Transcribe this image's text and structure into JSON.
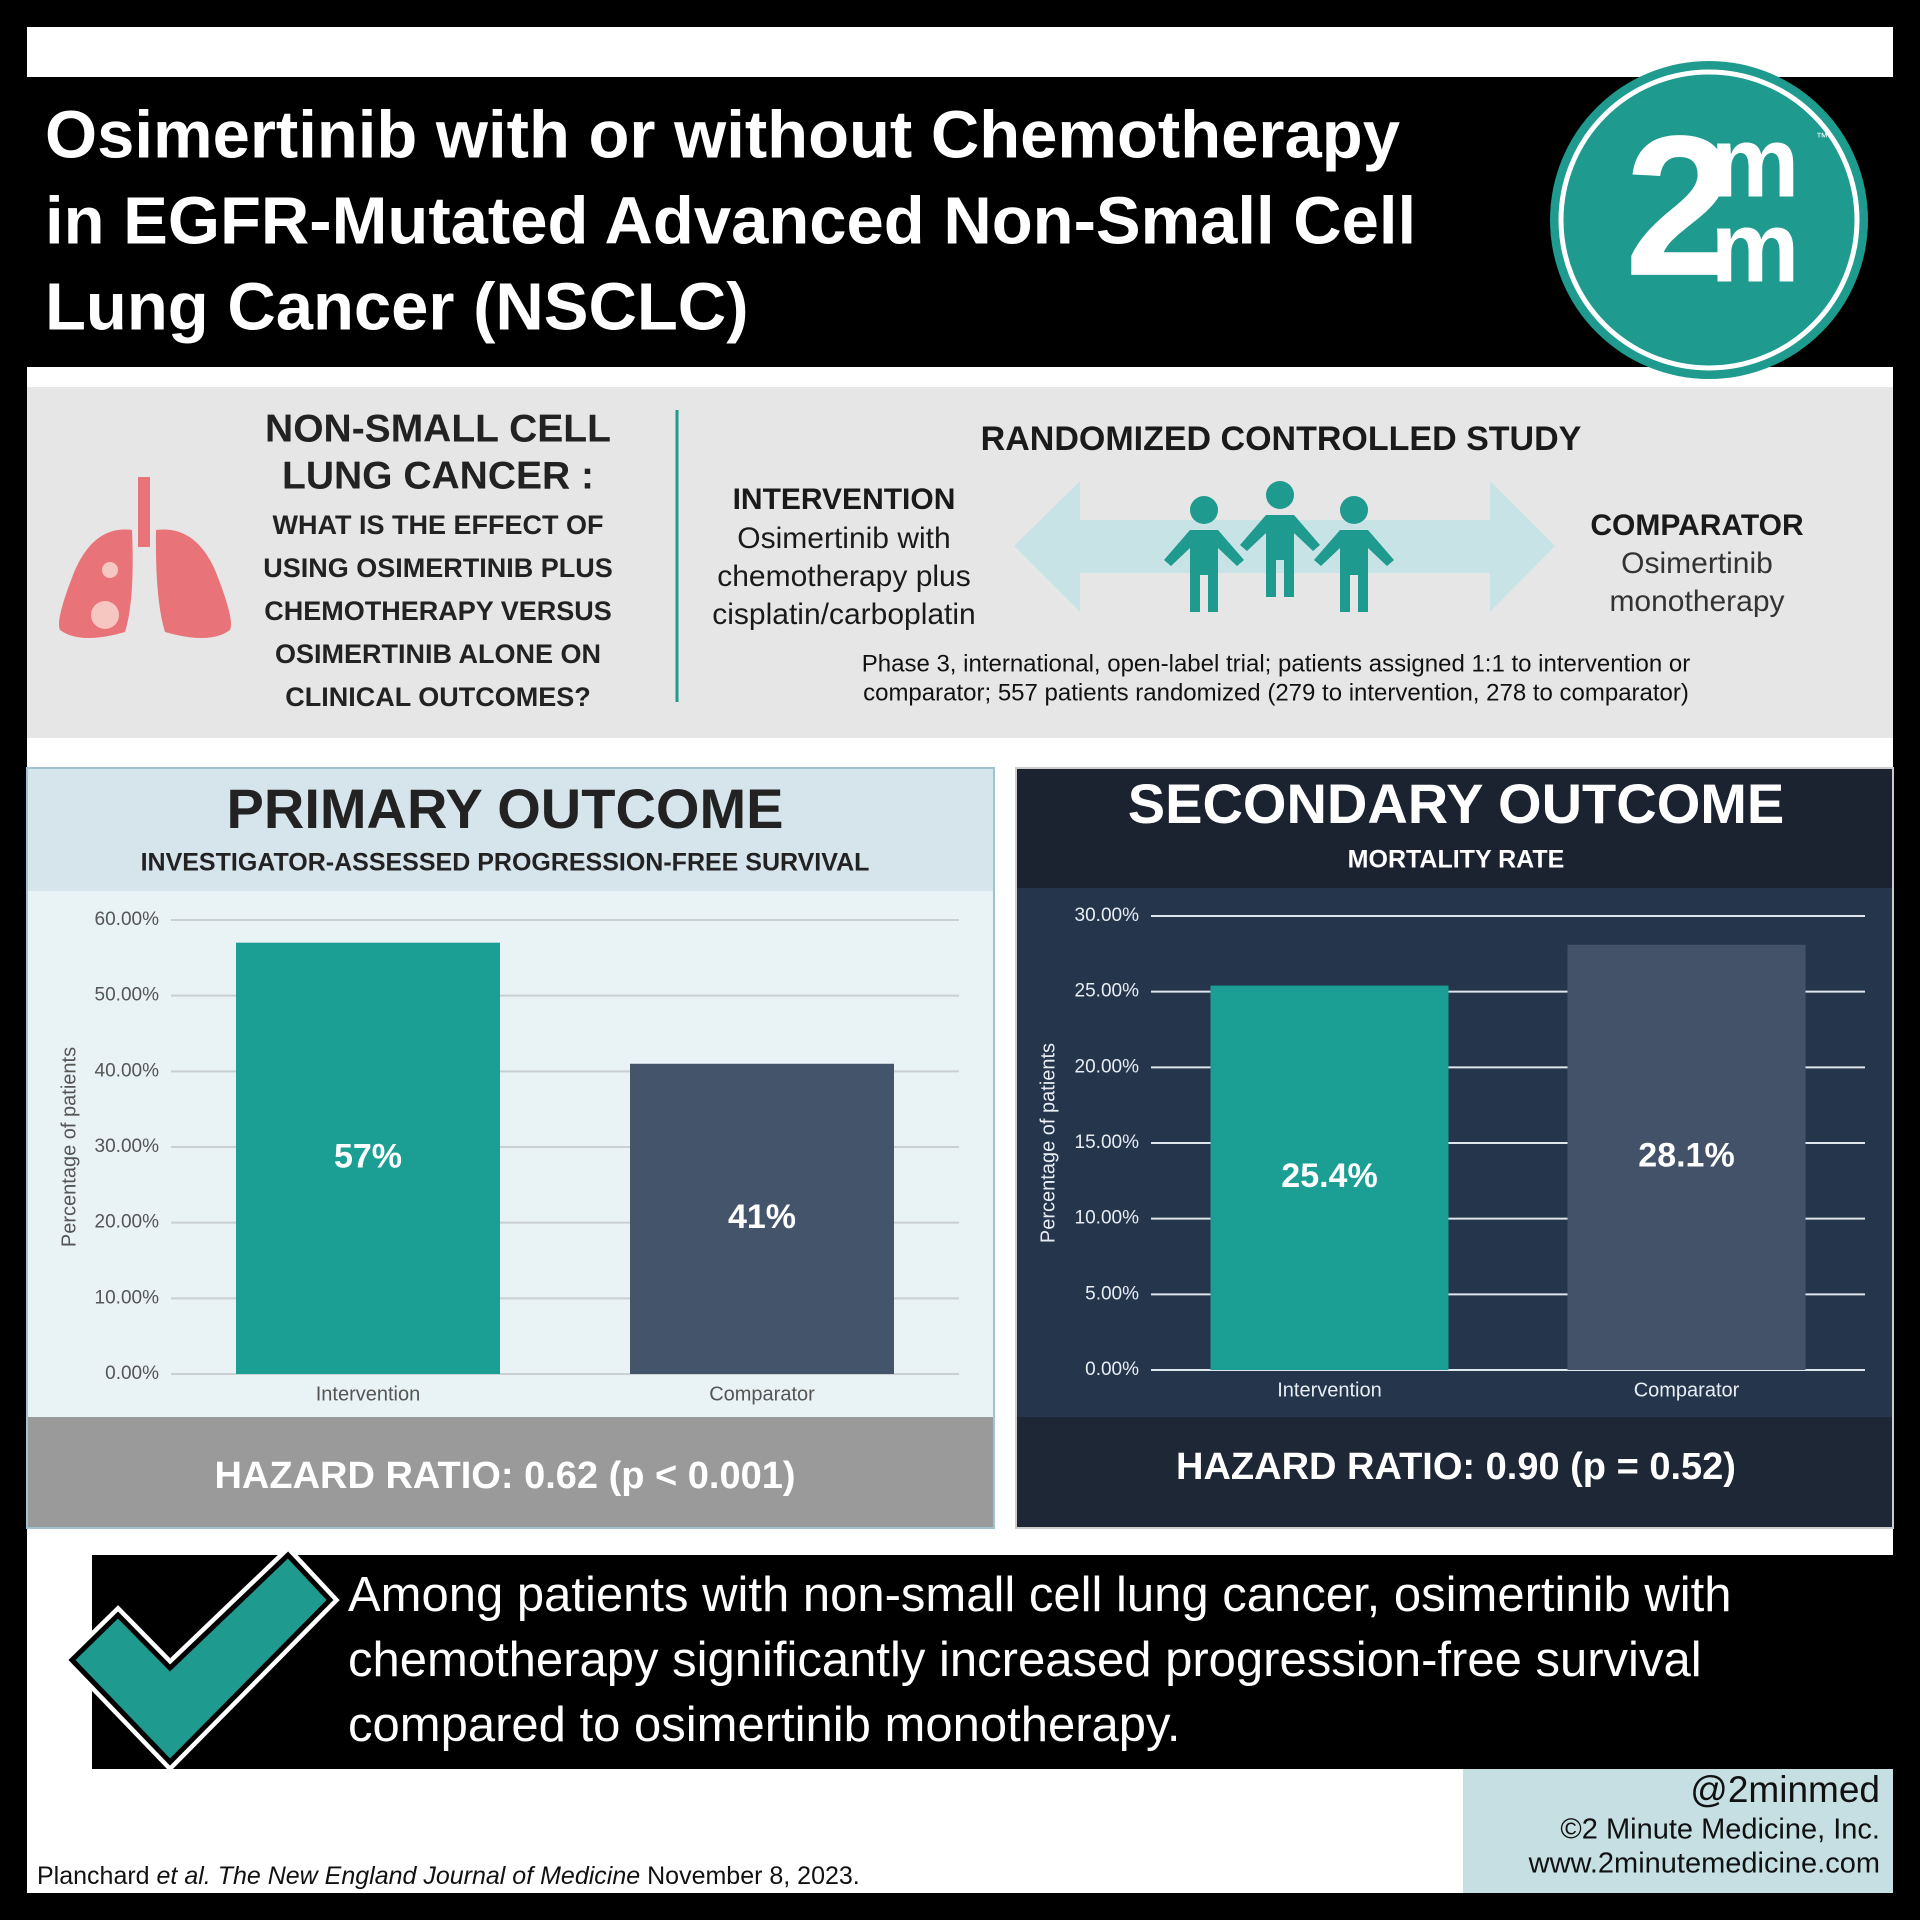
{
  "header": {
    "title_lines": [
      "Osimertinib with or without Chemotherapy",
      "in EGFR-Mutated Advanced Non-Small Cell",
      "Lung Cancer (NSCLC)"
    ],
    "logo": {
      "number": "2",
      "top": "m",
      "bottom": "m",
      "mark": "™"
    }
  },
  "question": {
    "heading_lines": [
      "NON-SMALL CELL",
      "LUNG CANCER :"
    ],
    "text_lines": [
      "WHAT IS THE EFFECT OF",
      "USING OSIMERTINIB PLUS",
      "CHEMOTHERAPY VERSUS",
      "OSIMERTINIB ALONE ON",
      "CLINICAL OUTCOMES?"
    ]
  },
  "study": {
    "title": "RANDOMIZED CONTROLLED STUDY",
    "intervention": {
      "label": "INTERVENTION",
      "text_lines": [
        "Osimertinib with",
        "chemotherapy plus",
        "cisplatin/carboplatin"
      ]
    },
    "comparator": {
      "label": "COMPARATOR",
      "text_lines": [
        "Osimertinib",
        "monotherapy"
      ]
    },
    "design_lines": [
      "Phase 3, international, open-label trial; patients assigned 1:1 to intervention or",
      "comparator; 557 patients randomized (279 to intervention, 278 to comparator)"
    ]
  },
  "chart_data": [
    {
      "type": "bar",
      "title": "PRIMARY OUTCOME",
      "subtitle": "INVESTIGATOR-ASSESSED PROGRESSION-FREE SURVIVAL",
      "ylabel": "Percentage of patients",
      "categories": [
        "Intervention",
        "Comparator"
      ],
      "values": [
        57,
        41
      ],
      "value_labels": [
        "57%",
        "41%"
      ],
      "colors": [
        "#1b9e93",
        "#44546b"
      ],
      "ylim": [
        0,
        60
      ],
      "yticks": [
        {
          "value": 0,
          "label": "0.00%"
        },
        {
          "value": 10,
          "label": "10.00%"
        },
        {
          "value": 20,
          "label": "20.00%"
        },
        {
          "value": 30,
          "label": "30.00%"
        },
        {
          "value": 40,
          "label": "40.00%"
        },
        {
          "value": 50,
          "label": "50.00%"
        },
        {
          "value": 60,
          "label": "60.00%"
        }
      ],
      "grid": true,
      "annotation": "HAZARD RATIO: 0.62 (p < 0.001)"
    },
    {
      "type": "bar",
      "title": "SECONDARY OUTCOME",
      "subtitle": "MORTALITY RATE",
      "ylabel": "Percentage of patients",
      "categories": [
        "Intervention",
        "Comparator"
      ],
      "values": [
        25.4,
        28.1
      ],
      "value_labels": [
        "25.4%",
        "28.1%"
      ],
      "colors": [
        "#1b9e93",
        "#435269"
      ],
      "ylim": [
        0,
        30
      ],
      "yticks": [
        {
          "value": 0,
          "label": "0.00%"
        },
        {
          "value": 5,
          "label": "5.00%"
        },
        {
          "value": 10,
          "label": "10.00%"
        },
        {
          "value": 15,
          "label": "15.00%"
        },
        {
          "value": 20,
          "label": "20.00%"
        },
        {
          "value": 25,
          "label": "25.00%"
        },
        {
          "value": 30,
          "label": "30.00%"
        }
      ],
      "grid": true,
      "annotation": "HAZARD RATIO: 0.90 (p = 0.52)"
    }
  ],
  "conclusion_lines": [
    "Among patients with non-small cell lung cancer, osimertinib with",
    "chemotherapy significantly increased progression-free survival",
    "compared to osimertinib monotherapy."
  ],
  "footer": {
    "handle": "@2minmed",
    "copyright": "©2 Minute Medicine, Inc.",
    "website": "www.2minutemedicine.com",
    "citation": {
      "author": "Planchard",
      "etal": "et al.",
      "journal": "The New England Journal of Medicine",
      "date": "November 8, 2023."
    }
  }
}
